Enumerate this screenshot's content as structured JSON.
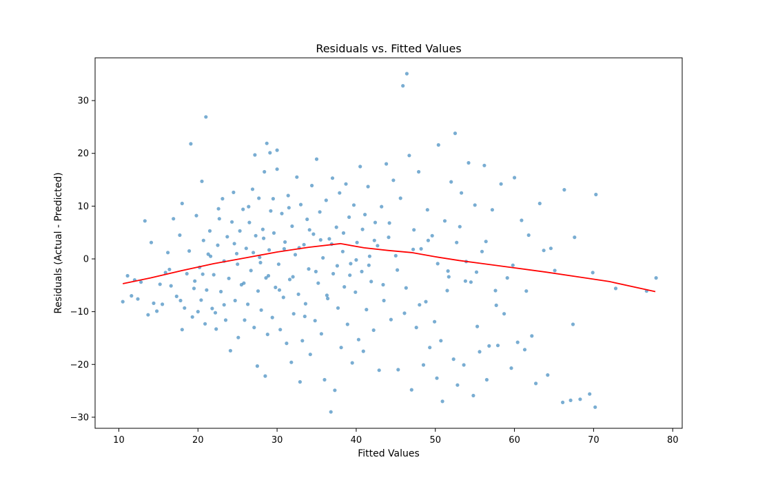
{
  "chart_data": {
    "type": "scatter",
    "title": "Residuals vs. Fitted Values",
    "xlabel": "Fitted Values",
    "ylabel": "Residuals (Actual - Predicted)",
    "xlim": [
      7.0,
      81.2
    ],
    "ylim": [
      -32.1,
      38.1
    ],
    "x_ticks": [
      10,
      20,
      30,
      40,
      50,
      60,
      70,
      80
    ],
    "y_ticks": [
      -30,
      -20,
      -10,
      0,
      10,
      20,
      30
    ],
    "x_tick_labels": [
      "10",
      "20",
      "30",
      "40",
      "50",
      "60",
      "70",
      "80"
    ],
    "y_tick_labels": [
      "−30",
      "−20",
      "−10",
      "0",
      "10",
      "20",
      "30"
    ],
    "grid": false,
    "colors": {
      "points": "#1f77b4",
      "trend": "#ff0000"
    },
    "series": [
      {
        "type": "scatter",
        "points": [
          [
            10.5,
            -8.1
          ],
          [
            11.1,
            -3.2
          ],
          [
            11.6,
            -7.0
          ],
          [
            12.0,
            -4.0
          ],
          [
            12.4,
            -7.6
          ],
          [
            12.8,
            -4.4
          ],
          [
            13.3,
            7.2
          ],
          [
            13.7,
            -10.6
          ],
          [
            14.1,
            3.1
          ],
          [
            14.4,
            -8.4
          ],
          [
            14.8,
            -9.9
          ],
          [
            15.2,
            -4.8
          ],
          [
            15.5,
            -8.6
          ],
          [
            15.9,
            -2.6
          ],
          [
            16.2,
            1.2
          ],
          [
            16.6,
            -5.1
          ],
          [
            16.9,
            7.6
          ],
          [
            17.3,
            -7.1
          ],
          [
            17.7,
            4.5
          ],
          [
            18.0,
            -13.4
          ],
          [
            18.0,
            10.5
          ],
          [
            18.3,
            -9.3
          ],
          [
            18.6,
            -2.8
          ],
          [
            18.9,
            1.5
          ],
          [
            19.1,
            21.8
          ],
          [
            19.3,
            -11.0
          ],
          [
            19.5,
            -5.6
          ],
          [
            19.8,
            8.2
          ],
          [
            20.0,
            -10.0
          ],
          [
            20.2,
            -1.6
          ],
          [
            20.4,
            -7.8
          ],
          [
            20.5,
            14.7
          ],
          [
            20.7,
            3.5
          ],
          [
            20.9,
            -12.3
          ],
          [
            21.0,
            26.9
          ],
          [
            21.1,
            -5.9
          ],
          [
            21.3,
            0.9
          ],
          [
            21.5,
            5.3
          ],
          [
            21.8,
            -9.4
          ],
          [
            22.0,
            -3.0
          ],
          [
            22.3,
            -13.3
          ],
          [
            22.5,
            2.6
          ],
          [
            22.7,
            7.6
          ],
          [
            22.9,
            -6.2
          ],
          [
            23.1,
            11.4
          ],
          [
            23.3,
            -0.4
          ],
          [
            23.5,
            -11.6
          ],
          [
            23.7,
            4.2
          ],
          [
            23.9,
            -3.7
          ],
          [
            24.1,
            -17.4
          ],
          [
            24.3,
            7.0
          ],
          [
            24.5,
            12.6
          ],
          [
            24.7,
            -7.9
          ],
          [
            24.9,
            1.0
          ],
          [
            25.1,
            -14.9
          ],
          [
            25.3,
            5.3
          ],
          [
            25.5,
            -4.9
          ],
          [
            25.7,
            9.4
          ],
          [
            25.9,
            -11.6
          ],
          [
            26.1,
            2.0
          ],
          [
            26.3,
            -8.6
          ],
          [
            26.5,
            6.9
          ],
          [
            26.7,
            -2.2
          ],
          [
            26.9,
            13.2
          ],
          [
            27.1,
            -13.0
          ],
          [
            27.2,
            19.7
          ],
          [
            27.3,
            4.4
          ],
          [
            27.5,
            -20.3
          ],
          [
            27.6,
            -6.1
          ],
          [
            27.7,
            11.5
          ],
          [
            27.8,
            0.3
          ],
          [
            28.0,
            -9.7
          ],
          [
            28.2,
            5.6
          ],
          [
            28.4,
            16.5
          ],
          [
            28.5,
            -22.2
          ],
          [
            28.6,
            -3.6
          ],
          [
            28.7,
            21.9
          ],
          [
            28.8,
            -14.3
          ],
          [
            29.0,
            1.7
          ],
          [
            29.1,
            20.1
          ],
          [
            29.2,
            9.1
          ],
          [
            29.4,
            -11.1
          ],
          [
            29.6,
            4.9
          ],
          [
            29.8,
            -5.4
          ],
          [
            30.0,
            17.0
          ],
          [
            30.0,
            20.6
          ],
          [
            30.2,
            -1.0
          ],
          [
            30.4,
            -13.4
          ],
          [
            30.6,
            8.6
          ],
          [
            30.8,
            -7.3
          ],
          [
            31.0,
            3.2
          ],
          [
            31.2,
            -16.0
          ],
          [
            31.4,
            12.0
          ],
          [
            31.6,
            -3.9
          ],
          [
            31.8,
            -19.6
          ],
          [
            31.9,
            6.2
          ],
          [
            32.1,
            -10.4
          ],
          [
            32.3,
            0.8
          ],
          [
            32.5,
            15.5
          ],
          [
            32.7,
            -6.7
          ],
          [
            32.9,
            -23.3
          ],
          [
            33.0,
            10.3
          ],
          [
            33.2,
            -15.5
          ],
          [
            33.4,
            2.7
          ],
          [
            33.6,
            -8.5
          ],
          [
            33.8,
            7.5
          ],
          [
            34.0,
            -1.9
          ],
          [
            34.2,
            -18.1
          ],
          [
            34.4,
            13.9
          ],
          [
            34.6,
            4.7
          ],
          [
            34.8,
            -11.7
          ],
          [
            35.0,
            18.9
          ],
          [
            35.2,
            -4.6
          ],
          [
            35.4,
            8.9
          ],
          [
            35.6,
            -14.2
          ],
          [
            35.8,
            0.2
          ],
          [
            36.0,
            -22.9
          ],
          [
            36.2,
            11.1
          ],
          [
            36.4,
            -7.5
          ],
          [
            36.6,
            3.8
          ],
          [
            36.8,
            -29.0
          ],
          [
            37.0,
            15.3
          ],
          [
            37.1,
            -2.8
          ],
          [
            37.3,
            -24.9
          ],
          [
            37.5,
            6.0
          ],
          [
            37.7,
            -9.3
          ],
          [
            37.9,
            12.5
          ],
          [
            38.1,
            -16.8
          ],
          [
            38.3,
            1.4
          ],
          [
            38.5,
            -5.3
          ],
          [
            38.7,
            14.2
          ],
          [
            38.9,
            -12.4
          ],
          [
            39.1,
            7.9
          ],
          [
            39.3,
            -0.9
          ],
          [
            39.5,
            -19.7
          ],
          [
            39.7,
            10.2
          ],
          [
            39.9,
            -6.3
          ],
          [
            40.1,
            3.1
          ],
          [
            40.3,
            -15.3
          ],
          [
            40.5,
            17.5
          ],
          [
            40.7,
            -2.4
          ],
          [
            40.9,
            -17.5
          ],
          [
            41.1,
            8.4
          ],
          [
            41.3,
            -9.6
          ],
          [
            41.5,
            13.7
          ],
          [
            41.7,
            0.5
          ],
          [
            41.9,
            -4.3
          ],
          [
            42.2,
            -13.5
          ],
          [
            42.4,
            6.9
          ],
          [
            42.7,
            2.5
          ],
          [
            42.9,
            -21.1
          ],
          [
            43.2,
            9.9
          ],
          [
            43.5,
            -7.9
          ],
          [
            43.8,
            18.0
          ],
          [
            44.1,
            4.1
          ],
          [
            44.4,
            -11.5
          ],
          [
            44.7,
            14.9
          ],
          [
            45.0,
            0.6
          ],
          [
            45.3,
            -21.0
          ],
          [
            45.6,
            11.5
          ],
          [
            45.9,
            32.8
          ],
          [
            46.1,
            -10.3
          ],
          [
            46.4,
            35.1
          ],
          [
            46.7,
            19.6
          ],
          [
            47.0,
            -24.8
          ],
          [
            47.3,
            5.5
          ],
          [
            47.6,
            -13.0
          ],
          [
            47.9,
            16.5
          ],
          [
            48.2,
            1.9
          ],
          [
            48.5,
            -20.1
          ],
          [
            48.8,
            -8.1
          ],
          [
            49.0,
            9.3
          ],
          [
            49.3,
            -16.8
          ],
          [
            49.6,
            4.4
          ],
          [
            49.9,
            -11.9
          ],
          [
            50.2,
            -22.6
          ],
          [
            50.4,
            21.6
          ],
          [
            50.7,
            -15.5
          ],
          [
            50.9,
            -27.0
          ],
          [
            51.2,
            7.2
          ],
          [
            51.5,
            -6.0
          ],
          [
            51.7,
            -3.4
          ],
          [
            52.0,
            14.6
          ],
          [
            52.3,
            -19.0
          ],
          [
            52.5,
            23.8
          ],
          [
            52.8,
            -23.9
          ],
          [
            53.1,
            6.1
          ],
          [
            53.3,
            12.5
          ],
          [
            53.6,
            -20.1
          ],
          [
            53.9,
            -0.5
          ],
          [
            54.2,
            18.2
          ],
          [
            54.5,
            -4.4
          ],
          [
            54.8,
            -25.9
          ],
          [
            55.0,
            10.2
          ],
          [
            55.3,
            -12.8
          ],
          [
            55.6,
            -17.6
          ],
          [
            55.9,
            1.4
          ],
          [
            56.2,
            17.7
          ],
          [
            56.5,
            -22.9
          ],
          [
            56.8,
            -16.5
          ],
          [
            57.2,
            9.3
          ],
          [
            57.6,
            -6.0
          ],
          [
            57.9,
            -16.4
          ],
          [
            58.3,
            14.2
          ],
          [
            58.7,
            -10.4
          ],
          [
            59.1,
            -3.6
          ],
          [
            59.6,
            -20.7
          ],
          [
            60.0,
            15.4
          ],
          [
            60.4,
            -15.8
          ],
          [
            60.9,
            7.3
          ],
          [
            61.3,
            -17.2
          ],
          [
            61.8,
            4.5
          ],
          [
            62.2,
            -14.6
          ],
          [
            62.7,
            -23.6
          ],
          [
            63.2,
            10.5
          ],
          [
            63.7,
            1.6
          ],
          [
            64.2,
            -22.0
          ],
          [
            64.6,
            2.0
          ],
          [
            65.1,
            -2.2
          ],
          [
            66.1,
            -27.2
          ],
          [
            66.3,
            13.1
          ],
          [
            67.1,
            -26.8
          ],
          [
            67.4,
            -12.4
          ],
          [
            67.6,
            4.1
          ],
          [
            68.3,
            -26.6
          ],
          [
            69.5,
            -25.6
          ],
          [
            69.9,
            -2.6
          ],
          [
            70.2,
            -28.1
          ],
          [
            70.3,
            12.2
          ],
          [
            72.8,
            -5.6
          ],
          [
            76.7,
            -6.1
          ],
          [
            77.9,
            -3.6
          ],
          [
            16.4,
            -2.0
          ],
          [
            17.8,
            -7.9
          ],
          [
            19.6,
            -4.2
          ],
          [
            20.6,
            -2.9
          ],
          [
            21.6,
            0.5
          ],
          [
            22.2,
            -10.2
          ],
          [
            22.6,
            9.5
          ],
          [
            23.3,
            -8.7
          ],
          [
            24.6,
            2.9
          ],
          [
            25.0,
            -1.0
          ],
          [
            25.8,
            -4.6
          ],
          [
            26.4,
            9.9
          ],
          [
            27.0,
            1.2
          ],
          [
            27.9,
            -0.7
          ],
          [
            28.3,
            3.9
          ],
          [
            28.9,
            -3.2
          ],
          [
            29.5,
            11.4
          ],
          [
            30.3,
            -5.9
          ],
          [
            30.9,
            1.9
          ],
          [
            31.5,
            9.7
          ],
          [
            32.0,
            -3.4
          ],
          [
            32.8,
            2.1
          ],
          [
            33.5,
            -10.9
          ],
          [
            34.1,
            5.5
          ],
          [
            34.9,
            -2.4
          ],
          [
            35.5,
            3.6
          ],
          [
            36.3,
            -6.9
          ],
          [
            36.9,
            2.8
          ],
          [
            37.6,
            -1.3
          ],
          [
            38.4,
            4.9
          ],
          [
            39.2,
            -3.1
          ],
          [
            40.0,
            -0.2
          ],
          [
            40.8,
            5.6
          ],
          [
            41.6,
            -1.2
          ],
          [
            42.3,
            3.5
          ],
          [
            43.4,
            -4.9
          ],
          [
            44.2,
            6.8
          ],
          [
            45.2,
            -2.1
          ],
          [
            46.3,
            -5.5
          ],
          [
            47.2,
            1.8
          ],
          [
            48.0,
            -8.7
          ],
          [
            49.1,
            3.5
          ],
          [
            50.3,
            -0.9
          ],
          [
            51.6,
            -2.3
          ],
          [
            52.7,
            3.1
          ],
          [
            53.8,
            -4.2
          ],
          [
            55.2,
            -2.5
          ],
          [
            56.4,
            3.3
          ],
          [
            57.7,
            -8.8
          ],
          [
            59.8,
            -1.2
          ],
          [
            61.5,
            -6.1
          ]
        ]
      },
      {
        "type": "line",
        "points": [
          [
            10.5,
            -4.7
          ],
          [
            14.0,
            -3.6
          ],
          [
            18.0,
            -2.2
          ],
          [
            22.0,
            -0.9
          ],
          [
            26.0,
            0.2
          ],
          [
            30.0,
            1.3
          ],
          [
            34.0,
            2.2
          ],
          [
            38.0,
            2.9
          ],
          [
            41.0,
            2.1
          ],
          [
            44.0,
            1.6
          ],
          [
            47.0,
            1.2
          ],
          [
            50.0,
            0.4
          ],
          [
            53.0,
            -0.3
          ],
          [
            56.0,
            -0.9
          ],
          [
            60.0,
            -1.7
          ],
          [
            64.0,
            -2.5
          ],
          [
            68.0,
            -3.4
          ],
          [
            72.0,
            -4.3
          ],
          [
            77.8,
            -6.2
          ]
        ]
      }
    ]
  }
}
